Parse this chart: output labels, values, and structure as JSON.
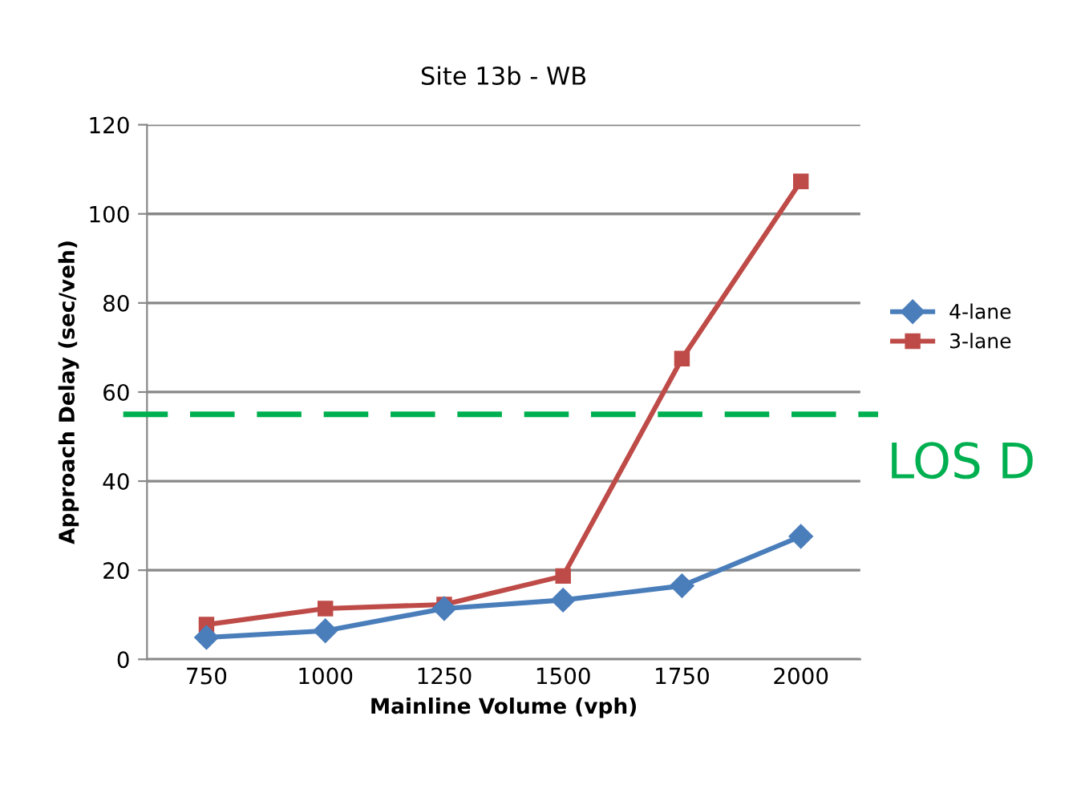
{
  "chart_data": {
    "type": "line",
    "title": "Site 13b - WB",
    "xlabel": "Mainline Volume (vph)",
    "ylabel": "Approach Delay (sec/veh)",
    "categories": [
      "750",
      "1000",
      "1250",
      "1500",
      "1750",
      "2000"
    ],
    "series": [
      {
        "name": "4-lane",
        "color": "#4a7ebb",
        "marker": "diamond",
        "values": [
          4.9,
          6.4,
          11.4,
          13.3,
          16.5,
          27.6
        ]
      },
      {
        "name": "3-lane",
        "color": "#be4b48",
        "marker": "square",
        "values": [
          7.8,
          11.4,
          12.3,
          18.7,
          67.5,
          107.3
        ]
      }
    ],
    "ylim": [
      0,
      120
    ],
    "yticks": [
      0,
      20,
      40,
      60,
      80,
      100,
      120
    ],
    "grid": "y",
    "legend": "right",
    "ref_lines": [
      {
        "axis": "y",
        "value": 55,
        "label": "LOS D",
        "color": "#00b050",
        "line_style": "dashed"
      }
    ]
  }
}
